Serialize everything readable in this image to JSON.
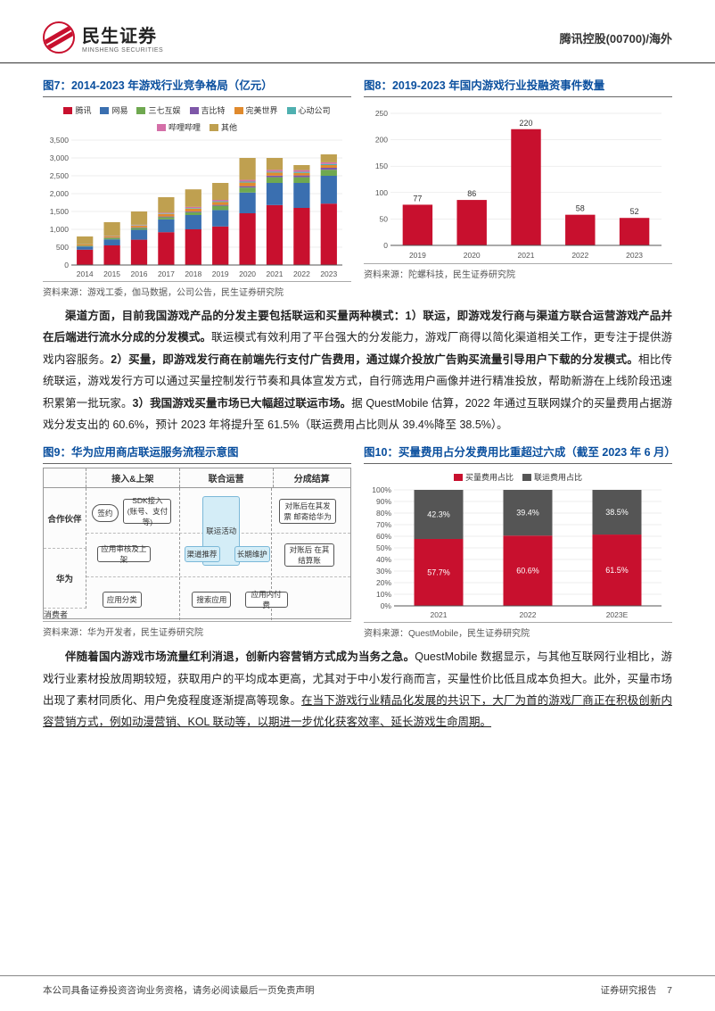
{
  "header": {
    "company_cn": "民生证券",
    "company_en": "MINSHENG SECURITIES",
    "right_text": "腾讯控股(00700)/海外"
  },
  "chart7": {
    "title": "图7：2014-2023 年游戏行业竞争格局（亿元）",
    "source": "资料来源：游戏工委，伽马数据，公司公告，民生证券研究院",
    "type": "stacked-bar",
    "ylim": [
      0,
      3500
    ],
    "ytick_step": 500,
    "categories": [
      "2014",
      "2015",
      "2016",
      "2017",
      "2018",
      "2019",
      "2020",
      "2021",
      "2022",
      "2023"
    ],
    "series": [
      {
        "name": "腾讯",
        "color": "#c8102e",
        "values": [
          430,
          550,
          710,
          920,
          1000,
          1080,
          1450,
          1680,
          1600,
          1720
        ]
      },
      {
        "name": "网易",
        "color": "#3a6fb0",
        "values": [
          90,
          170,
          280,
          360,
          400,
          460,
          580,
          620,
          700,
          780
        ]
      },
      {
        "name": "三七互娱",
        "color": "#6fa850",
        "values": [
          20,
          40,
          50,
          60,
          80,
          120,
          140,
          160,
          160,
          170
        ]
      },
      {
        "name": "吉比特",
        "color": "#7e57a8",
        "values": [
          5,
          10,
          15,
          20,
          20,
          25,
          40,
          45,
          50,
          55
        ]
      },
      {
        "name": "完美世界",
        "color": "#e08a2d",
        "values": [
          30,
          40,
          50,
          70,
          80,
          80,
          100,
          85,
          70,
          75
        ]
      },
      {
        "name": "心动公司",
        "color": "#4fb0b0",
        "values": [
          5,
          8,
          12,
          15,
          18,
          25,
          28,
          27,
          30,
          32
        ]
      },
      {
        "name": "哔哩哔哩",
        "color": "#d46fa8",
        "values": [
          2,
          5,
          10,
          20,
          30,
          35,
          48,
          50,
          50,
          45
        ]
      },
      {
        "name": "其他",
        "color": "#bfa050",
        "values": [
          218,
          377,
          373,
          435,
          492,
          475,
          614,
          333,
          140,
          223
        ]
      }
    ],
    "label_fontsize": 8.5,
    "title_color": "#0a4f9e"
  },
  "chart8": {
    "title": "图8：2019-2023 年国内游戏行业投融资事件数量",
    "source": "资料来源：陀螺科技，民生证券研究院",
    "type": "bar",
    "ylim": [
      0,
      250
    ],
    "ytick_step": 50,
    "categories": [
      "2019",
      "2020",
      "2021",
      "2022",
      "2023"
    ],
    "values": [
      77,
      86,
      220,
      58,
      52
    ],
    "bar_color": "#c8102e",
    "label_fontsize": 9
  },
  "para1": {
    "text": "渠道方面，目前我国游戏产品的分发主要包括联运和买量两种模式：1）联运，即游戏发行商与渠道方联合运营游戏产品并在后端进行流水分成的分发模式。",
    "bold_ranges": [
      "渠道方面，目前我国游戏产品的分发主要包括联运和买量两种模式：1）联运，即游戏发行商与渠道方联合运营游戏产品并在后端进行流水分成的分发模式。"
    ],
    "tail": "联运模式有效利用了平台强大的分发能力，游戏厂商得以简化渠道相关工作，更专注于提供游戏内容服务。",
    "p2_bold": "2）买量，即游戏发行商在前端先行支付广告费用，通过媒介投放广告购买流量引导用户下载的分发模式。",
    "p2_tail": "相比传统联运，游戏发行方可以通过买量控制发行节奏和具体宣发方式，自行筛选用户画像并进行精准投放，帮助新游在上线阶段迅速积累第一批玩家。",
    "p3_bold": "3）我国游戏买量市场已大幅超过联运市场。",
    "p3_tail": "据 QuestMobile 估算，2022 年通过互联网媒介的买量费用占据游戏分发支出的 60.6%，预计 2023 年将提升至 61.5%（联运费用占比则从 39.4%降至 38.5%）。"
  },
  "chart9": {
    "title": "图9：华为应用商店联运服务流程示意图",
    "source": "资料来源：华为开发者，民生证券研究院",
    "headers": [
      "",
      "接入&上架",
      "联合运营",
      "分成结算"
    ],
    "row_labels": [
      "合作伙伴",
      "华为",
      "消费者"
    ],
    "nodes": {
      "n1": "签约",
      "n2": "SDK接入\n(账号、支付等)",
      "n3": "联运活动",
      "n4": "对账后在其发票\n邮寄给华为",
      "n5": "应用审核及上架",
      "n6": "渠道推荐",
      "n7": "长期维护",
      "n8": "对账后\n在其结算账",
      "n9": "应用分类",
      "n10": "搜索应用",
      "n11": "应用内付费"
    }
  },
  "chart10": {
    "title": "图10：买量费用占分发费用比重超过六成（截至 2023 年 6 月）",
    "source": "资料来源：QuestMobile，民生证券研究院",
    "type": "stacked-bar-pct",
    "categories": [
      "2021",
      "2022",
      "2023E"
    ],
    "series": [
      {
        "name": "买量费用占比",
        "color": "#c8102e",
        "values": [
          57.7,
          60.6,
          61.5
        ]
      },
      {
        "name": "联运费用占比",
        "color": "#555555",
        "values": [
          42.3,
          39.4,
          38.5
        ]
      }
    ],
    "ylim": [
      0,
      100
    ],
    "ytick_step": 10,
    "value_label_color_red": "#ffffff",
    "value_label_color_grey": "#ffffff"
  },
  "para2": {
    "lead_bold": "伴随着国内游戏市场流量红利消退，创新内容营销方式成为当务之急。",
    "body": "QuestMobile 数据显示，与其他互联网行业相比，游戏行业素材投放周期较短，获取用户的平均成本更高，尤其对于中小发行商而言，买量性价比低且成本负担大。此外，买量市场出现了素材同质化、用户免疫程度逐渐提高等现象。",
    "underline": "在当下游戏行业精品化发展的共识下，大厂为首的游戏厂商正在积极创新内容营销方式，例如动漫营销、KOL 联动等，以期进一步优化获客效率、延长游戏生命周期。"
  },
  "footer": {
    "left": "本公司具备证券投资咨询业务资格，请务必阅读最后一页免责声明",
    "right_label": "证券研究报告",
    "page": "7"
  }
}
